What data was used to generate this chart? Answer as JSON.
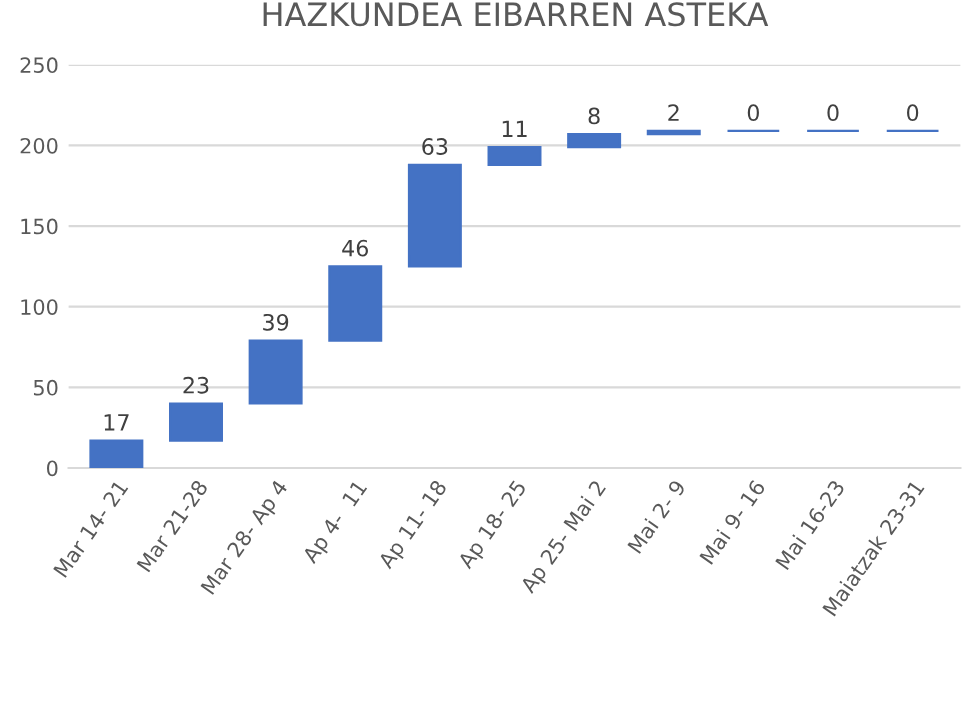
{
  "chart_data": {
    "type": "bar",
    "title": "HAZKUNDEA EIBARREN ASTEKA",
    "categories": [
      "Mar 14- 21",
      "Mar 21-28",
      "Mar 28- Ap 4",
      "Ap 4-  11",
      "Ap 11- 18",
      "Ap 18- 25",
      "Ap 25- Mai 2",
      "Mai 2- 9",
      "Mai 9- 16",
      "Mai 16-23",
      "Maiatzak 23-31"
    ],
    "values": [
      17,
      23,
      39,
      46,
      63,
      11,
      8,
      2,
      0,
      0,
      0
    ],
    "base": [
      0,
      17,
      40,
      79,
      125,
      188,
      199,
      207,
      209,
      209,
      209
    ],
    "color": "#4472c4",
    "data_labels": true,
    "ylim": [
      0,
      250
    ],
    "yticks": [
      0,
      50,
      100,
      150,
      200,
      250
    ],
    "grid": "y"
  }
}
